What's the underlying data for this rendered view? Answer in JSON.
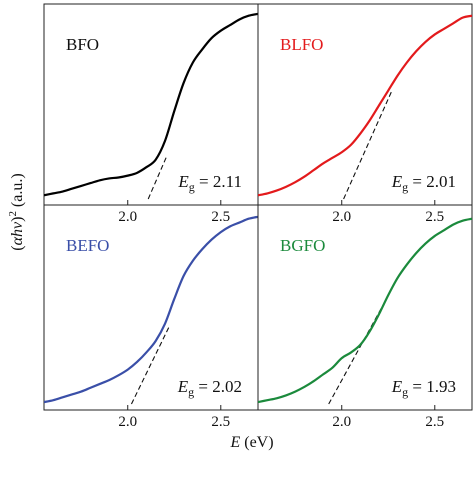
{
  "chart_data": {
    "type": "line",
    "layout": "2x2 panels with shared axes",
    "xlabel": {
      "italic": "E",
      "unit": " (eV)"
    },
    "ylabel": {
      "pre": "(",
      "italic": "αhν",
      "post": ")",
      "sup": "2",
      "unit": " (a.u.)"
    },
    "xlim": [
      1.55,
      2.7
    ],
    "xticks": [
      "2.0",
      "2.5"
    ],
    "ylim": [
      0,
      1
    ],
    "grid": false,
    "panels": [
      {
        "name": "BFO",
        "color": "#000000",
        "eg_symbol": "E",
        "eg_sub": "g",
        "eg_text": " = 2.11",
        "eg": 2.11,
        "tangent": [
          [
            2.11,
            0.0
          ],
          [
            2.21,
            0.23
          ]
        ],
        "x": [
          1.55,
          1.6,
          1.65,
          1.7,
          1.75,
          1.8,
          1.85,
          1.9,
          1.95,
          2.0,
          2.05,
          2.1,
          2.15,
          2.2,
          2.25,
          2.3,
          2.35,
          2.4,
          2.45,
          2.5,
          2.55,
          2.6,
          2.65,
          2.7
        ],
        "y": [
          0.02,
          0.03,
          0.04,
          0.055,
          0.07,
          0.085,
          0.1,
          0.11,
          0.115,
          0.125,
          0.14,
          0.17,
          0.21,
          0.31,
          0.47,
          0.62,
          0.73,
          0.8,
          0.86,
          0.9,
          0.93,
          0.96,
          0.98,
          0.99
        ]
      },
      {
        "name": "BLFO",
        "color": "#e31a1c",
        "eg_symbol": "E",
        "eg_sub": "g",
        "eg_text": " = 2.01",
        "eg": 2.01,
        "tangent": [
          [
            2.01,
            0.0
          ],
          [
            2.27,
            0.58
          ]
        ],
        "x": [
          1.55,
          1.6,
          1.65,
          1.7,
          1.75,
          1.8,
          1.85,
          1.9,
          1.95,
          2.0,
          2.05,
          2.1,
          2.15,
          2.2,
          2.25,
          2.3,
          2.35,
          2.4,
          2.45,
          2.5,
          2.55,
          2.6,
          2.65,
          2.7
        ],
        "y": [
          0.02,
          0.03,
          0.045,
          0.065,
          0.09,
          0.12,
          0.155,
          0.19,
          0.22,
          0.25,
          0.29,
          0.35,
          0.42,
          0.5,
          0.58,
          0.66,
          0.73,
          0.79,
          0.84,
          0.88,
          0.91,
          0.94,
          0.97,
          0.98
        ]
      },
      {
        "name": "BEFO",
        "color": "#3a4fa8",
        "eg_symbol": "E",
        "eg_sub": "g",
        "eg_text": " = 2.02",
        "eg": 2.02,
        "tangent": [
          [
            2.02,
            0.0
          ],
          [
            2.22,
            0.4
          ]
        ],
        "x": [
          1.55,
          1.6,
          1.65,
          1.7,
          1.75,
          1.8,
          1.85,
          1.9,
          1.95,
          2.0,
          2.05,
          2.1,
          2.15,
          2.2,
          2.25,
          2.3,
          2.35,
          2.4,
          2.45,
          2.5,
          2.55,
          2.6,
          2.65,
          2.7
        ],
        "y": [
          0.01,
          0.02,
          0.035,
          0.05,
          0.065,
          0.085,
          0.105,
          0.125,
          0.15,
          0.18,
          0.22,
          0.27,
          0.33,
          0.42,
          0.55,
          0.67,
          0.75,
          0.81,
          0.86,
          0.9,
          0.93,
          0.95,
          0.97,
          0.98
        ]
      },
      {
        "name": "BGFO",
        "color": "#1b8a3c",
        "eg_symbol": "E",
        "eg_sub": "g",
        "eg_text": " = 1.93",
        "eg": 1.93,
        "tangent": [
          [
            1.93,
            0.0
          ],
          [
            2.24,
            0.55
          ]
        ],
        "x": [
          1.55,
          1.6,
          1.65,
          1.7,
          1.75,
          1.8,
          1.85,
          1.9,
          1.95,
          2.0,
          2.05,
          2.1,
          2.15,
          2.2,
          2.25,
          2.3,
          2.35,
          2.4,
          2.45,
          2.5,
          2.55,
          2.6,
          2.65,
          2.7
        ],
        "y": [
          0.01,
          0.02,
          0.03,
          0.045,
          0.065,
          0.09,
          0.12,
          0.155,
          0.19,
          0.24,
          0.27,
          0.31,
          0.38,
          0.47,
          0.57,
          0.66,
          0.73,
          0.79,
          0.84,
          0.88,
          0.91,
          0.94,
          0.96,
          0.97
        ]
      }
    ]
  }
}
